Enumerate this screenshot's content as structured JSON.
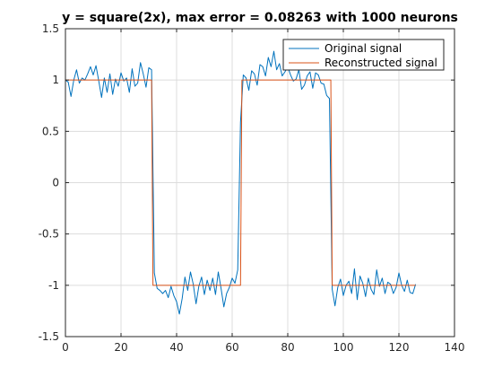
{
  "chart_data": {
    "type": "line",
    "title": "y = square(2x), max error = 0.08263 with 1000 neurons",
    "xlabel": "",
    "ylabel": "",
    "xlim": [
      0,
      140
    ],
    "ylim": [
      -1.5,
      1.5
    ],
    "xticks": [
      0,
      20,
      40,
      60,
      80,
      100,
      120,
      140
    ],
    "yticks": [
      -1.5,
      -1,
      -0.5,
      0,
      0.5,
      1,
      1.5
    ],
    "xtick_labels": [
      "0",
      "20",
      "40",
      "60",
      "80",
      "100",
      "120",
      "140"
    ],
    "ytick_labels": [
      "-1.5",
      "-1",
      "-0.5",
      "0",
      "0.5",
      "1",
      "1.5"
    ],
    "grid": true,
    "legend_position": "top-right",
    "series": [
      {
        "name": "Original signal",
        "color": "#0072bd",
        "x": [
          0,
          1,
          2,
          3,
          4,
          5,
          6,
          7,
          8,
          9,
          10,
          11,
          12,
          13,
          14,
          15,
          16,
          17,
          18,
          19,
          20,
          21,
          22,
          23,
          24,
          25,
          26,
          27,
          28,
          29,
          30,
          31,
          32,
          33,
          34,
          35,
          36,
          37,
          38,
          39,
          40,
          41,
          42,
          43,
          44,
          45,
          46,
          47,
          48,
          49,
          50,
          51,
          52,
          53,
          54,
          55,
          56,
          57,
          58,
          59,
          60,
          61,
          62,
          63,
          64,
          65,
          66,
          67,
          68,
          69,
          70,
          71,
          72,
          73,
          74,
          75,
          76,
          77,
          78,
          79,
          80,
          81,
          82,
          83,
          84,
          85,
          86,
          87,
          88,
          89,
          90,
          91,
          92,
          93,
          94,
          95,
          96,
          97,
          98,
          99,
          100,
          101,
          102,
          103,
          104,
          105,
          106,
          107,
          108,
          109,
          110,
          111,
          112,
          113,
          114,
          115,
          116,
          117,
          118,
          119,
          120,
          121,
          122,
          123,
          124,
          125,
          126
        ],
        "values": [
          1.0,
          0.98,
          0.84,
          1.0,
          1.1,
          0.97,
          1.02,
          1.0,
          1.06,
          1.13,
          1.05,
          1.14,
          0.99,
          0.83,
          1.02,
          0.88,
          1.06,
          0.86,
          1.01,
          0.94,
          1.07,
          0.99,
          1.02,
          0.88,
          1.11,
          0.94,
          0.97,
          1.17,
          1.06,
          0.93,
          1.12,
          1.1,
          -0.88,
          -1.03,
          -1.05,
          -1.08,
          -1.05,
          -1.12,
          -1.01,
          -1.1,
          -1.16,
          -1.28,
          -1.13,
          -0.92,
          -1.05,
          -0.87,
          -0.99,
          -1.18,
          -1.01,
          -0.92,
          -1.09,
          -0.95,
          -1.05,
          -0.93,
          -1.09,
          -0.87,
          -1.03,
          -1.21,
          -1.08,
          -1.02,
          -0.93,
          -0.98,
          -0.85,
          0.59,
          1.05,
          1.02,
          0.9,
          1.09,
          1.06,
          0.95,
          1.15,
          1.13,
          1.04,
          1.22,
          1.13,
          1.28,
          1.1,
          1.16,
          1.04,
          1.08,
          1.13,
          1.05,
          0.99,
          1.01,
          1.1,
          0.91,
          0.95,
          1.04,
          1.08,
          0.92,
          1.07,
          1.05,
          0.97,
          0.96,
          0.85,
          0.82,
          -1.04,
          -1.2,
          -1.02,
          -0.94,
          -1.1,
          -1.0,
          -0.96,
          -1.08,
          -0.84,
          -1.14,
          -0.91,
          -0.98,
          -1.11,
          -0.93,
          -1.04,
          -1.09,
          -0.85,
          -1.01,
          -0.93,
          -1.08,
          -0.97,
          -0.99,
          -1.08,
          -1.02,
          -0.88,
          -1.0,
          -1.06,
          -0.95,
          -1.07,
          -1.08,
          -0.99
        ]
      },
      {
        "name": "Reconstructed signal",
        "color": "#d95319",
        "x": [
          0,
          31,
          31.5,
          63,
          63.5,
          95.5,
          96,
          126
        ],
        "values": [
          1,
          1,
          -1,
          -1,
          1,
          1,
          -1,
          -1
        ]
      }
    ]
  }
}
